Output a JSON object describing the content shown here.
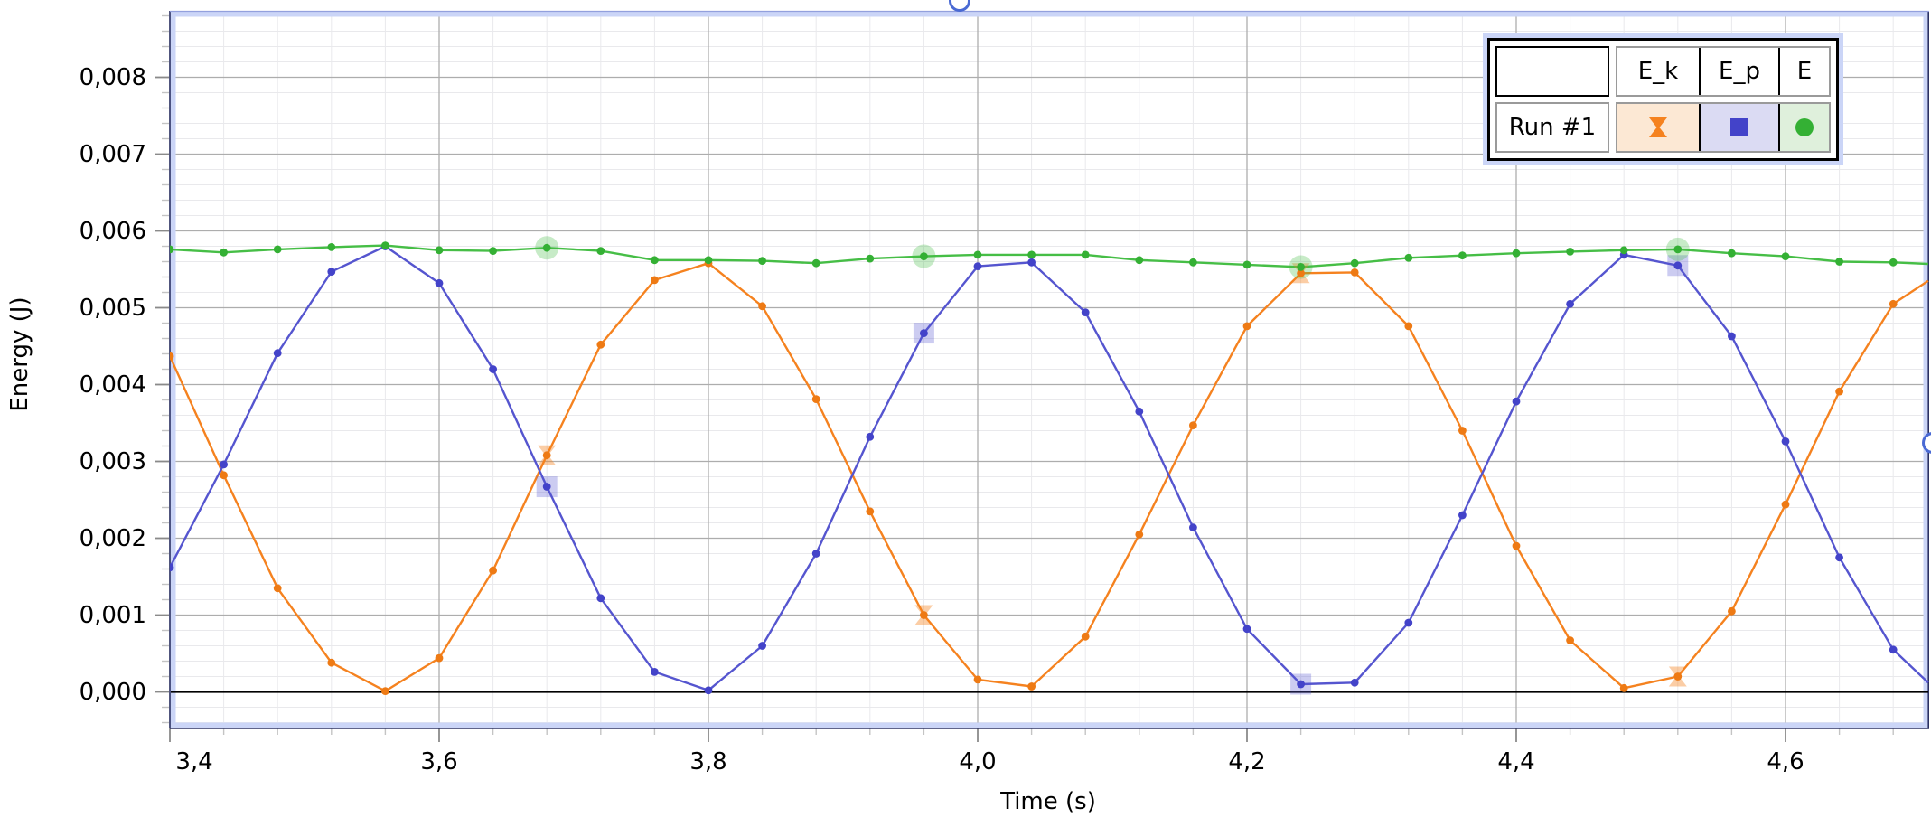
{
  "axes": {
    "x_label": "Time (s)",
    "y_label": "Energy (J)",
    "x_ticks": [
      {
        "t": 3.4,
        "label": "3,4",
        "dx": 27
      },
      {
        "t": 3.6,
        "label": "3,6",
        "dx": 0
      },
      {
        "t": 3.8,
        "label": "3,8",
        "dx": 0
      },
      {
        "t": 4.0,
        "label": "4,0",
        "dx": 0
      },
      {
        "t": 4.2,
        "label": "4,2",
        "dx": 0
      },
      {
        "t": 4.4,
        "label": "4,4",
        "dx": 0
      },
      {
        "t": 4.6,
        "label": "4,6",
        "dx": 0
      }
    ],
    "y_ticks": [
      {
        "v": 0.0,
        "label": "0,000"
      },
      {
        "v": 0.001,
        "label": "0,001"
      },
      {
        "v": 0.002,
        "label": "0,002"
      },
      {
        "v": 0.003,
        "label": "0,003"
      },
      {
        "v": 0.004,
        "label": "0,004"
      },
      {
        "v": 0.005,
        "label": "0,005"
      },
      {
        "v": 0.006,
        "label": "0,006"
      },
      {
        "v": 0.007,
        "label": "0,007"
      },
      {
        "v": 0.008,
        "label": "0,008"
      }
    ]
  },
  "legend": {
    "run_label": "Run #1",
    "columns": [
      "E_k",
      "E_p",
      "E"
    ]
  },
  "colors": {
    "ek": "#F5821F",
    "ek_dot": "#EE7A14",
    "ek_bg": "#FCE8D4",
    "ep": "#5555CF",
    "ep_dot": "#4343C9",
    "ep_bg": "#DBDBF3",
    "e": "#46BE46",
    "e_dot": "#34B034",
    "e_bg": "#DFF0DC",
    "band": "#CBD5F7",
    "plot_border": "#2B3163",
    "plot_border_top": "#93A0DD",
    "grid_major": "#ADADAD",
    "grid_minor": "#E9E9EC",
    "tick_major": "#8A8A8A",
    "tick_minor": "#C4C4C4",
    "zero_line": "#000000",
    "handle": "#4A6AD4"
  },
  "chart_data": {
    "type": "line",
    "title": "",
    "xlabel": "Time (s)",
    "ylabel": "Energy (J)",
    "xlim": [
      3.4,
      4.706
    ],
    "ylim": [
      -0.00046,
      0.00887
    ],
    "x_tick_step": 0.2,
    "x_minor_step": 0.04,
    "y_tick_step": 0.001,
    "y_minor_step": 0.0002,
    "grid": true,
    "legend_position": "top-right",
    "x": [
      3.4,
      3.44,
      3.48,
      3.52,
      3.56,
      3.6,
      3.64,
      3.68,
      3.72,
      3.76,
      3.8,
      3.84,
      3.88,
      3.92,
      3.96,
      4.0,
      4.04,
      4.08,
      4.12,
      4.16,
      4.2,
      4.24,
      4.28,
      4.32,
      4.36,
      4.4,
      4.44,
      4.48,
      4.52,
      4.56,
      4.6,
      4.64,
      4.68
    ],
    "series": [
      {
        "name": "E_k",
        "marker": "hourglass",
        "values": [
          0.00437,
          0.00282,
          0.00135,
          0.00038,
          1e-05,
          0.00044,
          0.00158,
          0.00308,
          0.00452,
          0.00536,
          0.00558,
          0.00502,
          0.00381,
          0.00235,
          0.001,
          0.00016,
          7e-05,
          0.00072,
          0.00205,
          0.00347,
          0.00476,
          0.00545,
          0.00546,
          0.00476,
          0.0034,
          0.0019,
          0.00067,
          5e-05,
          0.0002,
          0.00105,
          0.00244,
          0.00391,
          0.00505
        ]
      },
      {
        "name": "E_p",
        "marker": "square",
        "values": [
          0.00162,
          0.00296,
          0.00441,
          0.00547,
          0.0058,
          0.00532,
          0.0042,
          0.00267,
          0.00122,
          0.00026,
          2e-05,
          0.0006,
          0.0018,
          0.00332,
          0.00467,
          0.00554,
          0.00559,
          0.00494,
          0.00365,
          0.00214,
          0.00082,
          0.0001,
          0.00012,
          0.0009,
          0.0023,
          0.00378,
          0.00505,
          0.00569,
          0.00555,
          0.00463,
          0.00326,
          0.00175,
          0.00055
        ]
      },
      {
        "name": "E",
        "marker": "circle",
        "values": [
          0.00576,
          0.00572,
          0.00576,
          0.00579,
          0.00581,
          0.00575,
          0.00574,
          0.00578,
          0.00574,
          0.00562,
          0.00562,
          0.00561,
          0.00558,
          0.00564,
          0.00567,
          0.00569,
          0.00569,
          0.00569,
          0.00562,
          0.00559,
          0.00556,
          0.00553,
          0.00558,
          0.00565,
          0.00568,
          0.00571,
          0.00573,
          0.00575,
          0.00576,
          0.00571,
          0.00567,
          0.0056,
          0.00559
        ]
      }
    ],
    "highlight_x": [
      3.68,
      3.96,
      4.24,
      4.52
    ],
    "edge_extension": {
      "x": 4.706,
      "E_k": 0.00535,
      "E_p": 0.00012,
      "E": 0.00557
    }
  }
}
